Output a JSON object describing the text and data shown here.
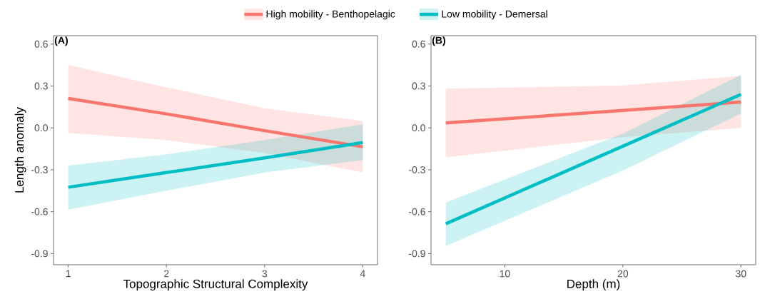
{
  "chart_data": [
    {
      "type": "line",
      "title": "(A)",
      "xlabel": "Topographic Structural Complexity",
      "ylabel": "Length anomaly",
      "legend": "top",
      "grid": false,
      "xlim": [
        0.85,
        4.15
      ],
      "ylim": [
        -0.98,
        0.66
      ],
      "xticks": [
        1,
        2,
        3,
        4
      ],
      "yticks": [
        0.6,
        0.3,
        {
          "value": 0,
          "label": "0.0"
        },
        -0.3,
        -0.6,
        -0.9
      ],
      "x": [
        1,
        2,
        3,
        4
      ],
      "series": [
        {
          "name": "High mobility - Benthopelagic",
          "color": "#f8766d",
          "values": [
            0.21,
            0.1,
            -0.02,
            -0.135
          ],
          "lower": [
            -0.036,
            -0.087,
            -0.18,
            -0.32
          ],
          "upper": [
            0.45,
            0.29,
            0.14,
            0.05
          ]
        },
        {
          "name": "Low mobility - Demersal",
          "color": "#00bfc4",
          "values": [
            -0.425,
            -0.32,
            -0.215,
            -0.105
          ],
          "lower": [
            -0.585,
            -0.45,
            -0.32,
            -0.23
          ],
          "upper": [
            -0.27,
            -0.19,
            -0.087,
            0.025
          ]
        }
      ]
    },
    {
      "type": "line",
      "title": "(B)",
      "xlabel": "Depth (m)",
      "grid": false,
      "xlim": [
        3.75,
        31.25
      ],
      "ylim": [
        -0.98,
        0.66
      ],
      "xticks": [
        10,
        20,
        30
      ],
      "yticks": [
        0.6,
        0.3,
        {
          "value": 0,
          "label": "0.0"
        },
        -0.3,
        -0.6,
        -0.9
      ],
      "x": [
        5,
        20,
        30
      ],
      "series": [
        {
          "color": "#f8766d",
          "values": [
            0.035,
            0.125,
            0.185
          ],
          "lower": [
            -0.211,
            -0.067,
            0.0
          ],
          "upper": [
            0.28,
            0.304,
            0.372
          ]
        },
        {
          "color": "#00bfc4",
          "values": [
            -0.687,
            -0.131,
            0.24
          ],
          "lower": [
            -0.846,
            -0.305,
            0.103
          ],
          "upper": [
            -0.534,
            -0.041,
            0.379
          ]
        }
      ]
    }
  ]
}
